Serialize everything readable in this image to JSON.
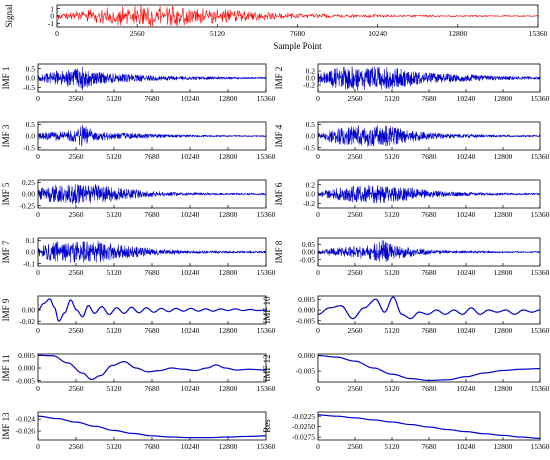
{
  "chart_data": [
    {
      "type": "line",
      "id": "signal",
      "ylabel": "Signal",
      "xlabel": "Sample Point",
      "color": "#ff0000",
      "ylim": [
        -1.5,
        1.5
      ],
      "yticks": [
        "1",
        "0",
        "-1"
      ],
      "xlim": [
        0,
        15360
      ],
      "xticks": [
        "0",
        "2560",
        "5120",
        "7680",
        "10240",
        "12800",
        "15360"
      ],
      "envelope": {
        "x": [
          0,
          1280,
          2560,
          3840,
          5120,
          6400,
          7680,
          8960,
          10240,
          11520,
          12800,
          14080,
          15360
        ],
        "y": [
          0.4,
          1.0,
          1.5,
          1.4,
          1.0,
          0.6,
          0.35,
          0.25,
          0.2,
          0.15,
          0.12,
          0.1,
          0.08
        ]
      }
    },
    {
      "type": "line",
      "id": "imf1",
      "ylabel": "IMF 1",
      "color": "#0000cc",
      "ylim": [
        -0.75,
        0.75
      ],
      "yticks": [
        "0.5",
        "0.0",
        "-0.5"
      ],
      "xlim": [
        0,
        15360
      ],
      "xticks": [
        "0",
        "2560",
        "5120",
        "7680",
        "10240",
        "12800",
        "15360"
      ],
      "envelope": {
        "x": [
          0,
          1280,
          2560,
          3000,
          3840,
          5120,
          6400,
          7680,
          8960,
          10240,
          11520,
          12800,
          14080,
          15360
        ],
        "y": [
          0.15,
          0.4,
          0.5,
          0.7,
          0.35,
          0.25,
          0.2,
          0.15,
          0.12,
          0.1,
          0.08,
          0.06,
          0.05,
          0.05
        ]
      }
    },
    {
      "type": "line",
      "id": "imf2",
      "ylabel": "IMF 2",
      "color": "#0000cc",
      "ylim": [
        -0.4,
        0.4
      ],
      "yticks": [
        "0.2",
        "0.0",
        "-0.2"
      ],
      "xlim": [
        0,
        15360
      ],
      "xticks": [
        "0",
        "2560",
        "5120",
        "7680",
        "10240",
        "12800",
        "15360"
      ],
      "envelope": {
        "x": [
          0,
          1280,
          2560,
          3840,
          5120,
          6400,
          7680,
          8960,
          10240,
          11520,
          12800,
          14080,
          15360
        ],
        "y": [
          0.15,
          0.3,
          0.35,
          0.34,
          0.3,
          0.22,
          0.15,
          0.12,
          0.1,
          0.08,
          0.06,
          0.05,
          0.04
        ]
      }
    },
    {
      "type": "line",
      "id": "imf3",
      "ylabel": "IMF 3",
      "color": "#0000cc",
      "ylim": [
        -0.6,
        0.6
      ],
      "yticks": [
        "0.5",
        "0.0",
        "-0.5"
      ],
      "xlim": [
        0,
        15360
      ],
      "xticks": [
        "0",
        "2560",
        "5120",
        "7680",
        "10240",
        "12800",
        "15360"
      ],
      "envelope": {
        "x": [
          0,
          1280,
          2560,
          3000,
          3840,
          5120,
          6400,
          7680,
          8960,
          10240,
          11520,
          12800,
          14080,
          15360
        ],
        "y": [
          0.12,
          0.2,
          0.25,
          0.5,
          0.2,
          0.15,
          0.12,
          0.1,
          0.07,
          0.05,
          0.04,
          0.03,
          0.03,
          0.03
        ]
      }
    },
    {
      "type": "line",
      "id": "imf4",
      "ylabel": "IMF 4",
      "color": "#0000cc",
      "ylim": [
        -0.6,
        0.6
      ],
      "yticks": [
        "0.5",
        "0.0",
        "-0.5"
      ],
      "xlim": [
        0,
        15360
      ],
      "xticks": [
        "0",
        "2560",
        "5120",
        "7680",
        "10240",
        "12800",
        "15360"
      ],
      "envelope": {
        "x": [
          0,
          1280,
          2560,
          3840,
          5120,
          6400,
          7680,
          8960,
          10240,
          11520,
          12800,
          14080,
          15360
        ],
        "y": [
          0.1,
          0.35,
          0.45,
          0.5,
          0.4,
          0.25,
          0.15,
          0.1,
          0.08,
          0.06,
          0.05,
          0.04,
          0.04
        ]
      }
    },
    {
      "type": "line",
      "id": "imf5",
      "ylabel": "IMF 5",
      "color": "#0000cc",
      "ylim": [
        -0.3,
        0.3
      ],
      "yticks": [
        "0.25",
        "0.00",
        "-0.25"
      ],
      "xlim": [
        0,
        15360
      ],
      "xticks": [
        "0",
        "2560",
        "5120",
        "7680",
        "10240",
        "12800",
        "15360"
      ],
      "envelope": {
        "x": [
          0,
          1280,
          2560,
          3840,
          5120,
          6400,
          7680,
          8960,
          10240,
          11520,
          12800,
          14080,
          15360
        ],
        "y": [
          0.12,
          0.2,
          0.22,
          0.2,
          0.15,
          0.1,
          0.06,
          0.04,
          0.03,
          0.025,
          0.02,
          0.02,
          0.02
        ]
      }
    },
    {
      "type": "line",
      "id": "imf6",
      "ylabel": "IMF 6",
      "color": "#0000cc",
      "ylim": [
        -0.3,
        0.3
      ],
      "yticks": [
        "0.2",
        "0.0",
        "-0.2"
      ],
      "xlim": [
        0,
        15360
      ],
      "xticks": [
        "0",
        "2560",
        "5120",
        "7680",
        "10240",
        "12800",
        "15360"
      ],
      "envelope": {
        "x": [
          0,
          1280,
          2560,
          3840,
          5120,
          6400,
          7680,
          8960,
          10240,
          11520,
          12800,
          14080,
          15360
        ],
        "y": [
          0.05,
          0.12,
          0.18,
          0.2,
          0.18,
          0.14,
          0.08,
          0.05,
          0.04,
          0.03,
          0.025,
          0.02,
          0.02
        ]
      }
    },
    {
      "type": "line",
      "id": "imf7",
      "ylabel": "IMF 7",
      "color": "#0000cc",
      "ylim": [
        -0.12,
        0.12
      ],
      "yticks": [
        "0.1",
        "0.0",
        "-0.1"
      ],
      "xlim": [
        0,
        15360
      ],
      "xticks": [
        "0",
        "2560",
        "5120",
        "7680",
        "10240",
        "12800",
        "15360"
      ],
      "envelope": {
        "x": [
          0,
          1280,
          2560,
          3840,
          5120,
          6400,
          7680,
          8960,
          10240,
          11520,
          12800,
          14080,
          15360
        ],
        "y": [
          0.04,
          0.1,
          0.09,
          0.1,
          0.07,
          0.05,
          0.03,
          0.02,
          0.015,
          0.012,
          0.01,
          0.01,
          0.01
        ]
      }
    },
    {
      "type": "line",
      "id": "imf8",
      "ylabel": "IMF 8",
      "color": "#0000cc",
      "ylim": [
        -0.09,
        0.09
      ],
      "yticks": [
        "0.05",
        "0.00",
        "-0.05"
      ],
      "xlim": [
        0,
        15360
      ],
      "xticks": [
        "0",
        "2560",
        "5120",
        "7680",
        "10240",
        "12800",
        "15360"
      ],
      "envelope": {
        "x": [
          0,
          1280,
          2560,
          3840,
          4400,
          5120,
          6400,
          7680,
          8960,
          10240,
          11520,
          12800,
          14080,
          15360
        ],
        "y": [
          0.01,
          0.03,
          0.04,
          0.05,
          0.08,
          0.05,
          0.03,
          0.015,
          0.01,
          0.008,
          0.007,
          0.006,
          0.005,
          0.005
        ]
      }
    },
    {
      "type": "line",
      "id": "imf9",
      "ylabel": "IMF 9",
      "color": "#0000cc",
      "ylim": [
        -0.025,
        0.025
      ],
      "yticks": [
        "0.00",
        "-0.02"
      ],
      "xlim": [
        0,
        15360
      ],
      "xticks": [
        "0",
        "2560",
        "5120",
        "7680",
        "10240",
        "12800",
        "15360"
      ],
      "points": {
        "x": [
          0,
          400,
          800,
          1100,
          1400,
          1800,
          2200,
          2600,
          3000,
          3400,
          3800,
          4300,
          4800,
          5300,
          5800,
          6300,
          6800,
          7300,
          7800,
          8300,
          8800,
          9300,
          9800,
          10300,
          10800,
          11300,
          11800,
          12300,
          12800,
          13300,
          13800,
          14300,
          14800,
          15360
        ],
        "y": [
          0,
          0.012,
          0.02,
          0.005,
          -0.02,
          -0.005,
          0.018,
          0.0,
          -0.012,
          0.008,
          -0.006,
          0.006,
          -0.008,
          0.004,
          -0.006,
          0.005,
          -0.005,
          0.004,
          -0.004,
          0.003,
          -0.003,
          0.003,
          -0.002,
          0.003,
          -0.002,
          0.002,
          -0.002,
          0.002,
          -0.001,
          0.002,
          -0.001,
          0.001,
          -0.001,
          0.0
        ]
      }
    },
    {
      "type": "line",
      "id": "imf10",
      "ylabel": "IMF 10",
      "color": "#0000cc",
      "ylim": [
        -0.0065,
        0.0065
      ],
      "yticks": [
        "0.005",
        "0.000",
        "-0.005"
      ],
      "xlim": [
        0,
        15360
      ],
      "xticks": [
        "0",
        "2560",
        "5120",
        "7680",
        "10240",
        "12800",
        "15360"
      ],
      "points": {
        "x": [
          0,
          800,
          1600,
          2400,
          3200,
          4000,
          4600,
          5200,
          5800,
          6400,
          7000,
          7600,
          8200,
          8800,
          9400,
          10000,
          10600,
          11200,
          11800,
          12400,
          13000,
          13600,
          14200,
          14800,
          15360
        ],
        "y": [
          -0.002,
          0.001,
          0.002,
          -0.004,
          0.001,
          0.005,
          -0.001,
          0.006,
          -0.002,
          -0.004,
          -0.001,
          -0.002,
          0.0,
          -0.002,
          0.0,
          -0.002,
          0.001,
          -0.002,
          0.0,
          -0.001,
          0.0,
          -0.002,
          0.0,
          -0.001,
          0.0
        ]
      }
    },
    {
      "type": "line",
      "id": "imf11",
      "ylabel": "IMF 11",
      "color": "#0000cc",
      "ylim": [
        -0.0055,
        0.0055
      ],
      "yticks": [
        "0.005",
        "0.000",
        "-0.005"
      ],
      "xlim": [
        0,
        15360
      ],
      "xticks": [
        "0",
        "2560",
        "5120",
        "7680",
        "10240",
        "12800",
        "15360"
      ],
      "points": {
        "x": [
          0,
          1000,
          2000,
          3000,
          3600,
          4200,
          5000,
          5800,
          6600,
          7400,
          8200,
          9000,
          9800,
          10600,
          11400,
          12000,
          12600,
          13400,
          14200,
          15360
        ],
        "y": [
          0.005,
          0.0048,
          0.002,
          -0.002,
          -0.0045,
          -0.003,
          0.001,
          0.0025,
          0.0,
          -0.0015,
          -0.001,
          0.0,
          -0.0005,
          -0.001,
          0.0,
          0.0012,
          0.0,
          -0.0008,
          -0.0005,
          -0.0008
        ]
      }
    },
    {
      "type": "line",
      "id": "imf12",
      "ylabel": "IMF 12",
      "color": "#0000cc",
      "ylim": [
        -0.0085,
        0.0005
      ],
      "yticks": [
        "0.000",
        "-0.005"
      ],
      "xlim": [
        0,
        15360
      ],
      "xticks": [
        "0",
        "2560",
        "5120",
        "7680",
        "10240",
        "12800",
        "15360"
      ],
      "points": {
        "x": [
          0,
          1280,
          2560,
          3840,
          5120,
          6400,
          7680,
          8960,
          10240,
          11520,
          12800,
          14080,
          15360
        ],
        "y": [
          0.0,
          -0.0005,
          -0.0018,
          -0.004,
          -0.006,
          -0.0074,
          -0.008,
          -0.0078,
          -0.0068,
          -0.0056,
          -0.0048,
          -0.0044,
          -0.0042
        ]
      }
    },
    {
      "type": "line",
      "id": "imf13",
      "ylabel": "IMF 13",
      "color": "#0000cc",
      "ylim": [
        -0.0275,
        -0.0228
      ],
      "yticks": [
        "-0.024",
        "-0.026"
      ],
      "xlim": [
        0,
        15360
      ],
      "xticks": [
        "0",
        "2560",
        "5120",
        "7680",
        "10240",
        "12800",
        "15360"
      ],
      "points": {
        "x": [
          0,
          1280,
          2560,
          3840,
          5120,
          6400,
          7680,
          8960,
          10240,
          11520,
          12800,
          14080,
          15360
        ],
        "y": [
          -0.0235,
          -0.0239,
          -0.0245,
          -0.0252,
          -0.0259,
          -0.0264,
          -0.0268,
          -0.027,
          -0.0271,
          -0.0271,
          -0.027,
          -0.0269,
          -0.0268
        ]
      }
    },
    {
      "type": "line",
      "id": "res",
      "ylabel": "Res",
      "color": "#0000cc",
      "ylim": [
        -0.0282,
        -0.0215
      ],
      "yticks": [
        "-0.0225",
        "-0.0250",
        "-0.0275"
      ],
      "xlim": [
        0,
        15360
      ],
      "xticks": [
        "0",
        "2560",
        "5120",
        "7680",
        "10240",
        "12800",
        "15360"
      ],
      "points": {
        "x": [
          0,
          1280,
          2560,
          3840,
          5120,
          6400,
          7680,
          8960,
          10240,
          11520,
          12800,
          14080,
          15360
        ],
        "y": [
          -0.0222,
          -0.0225,
          -0.0229,
          -0.0234,
          -0.0239,
          -0.0245,
          -0.0251,
          -0.0257,
          -0.0262,
          -0.0267,
          -0.0271,
          -0.0275,
          -0.0278
        ]
      }
    }
  ]
}
